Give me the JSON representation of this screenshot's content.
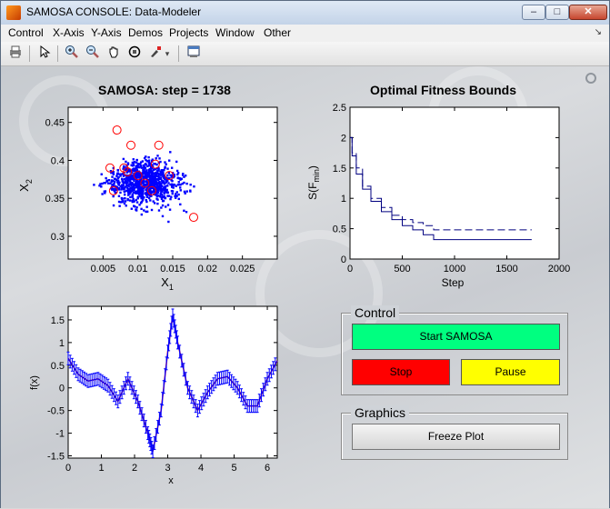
{
  "window": {
    "title": "SAMOSA CONSOLE: Data-Modeler",
    "minimize_label": "–",
    "restore_label": "□",
    "close_label": "✕"
  },
  "menu": {
    "items": [
      "Control",
      "X-Axis",
      "Y-Axis",
      "Demos",
      "Projects",
      "Window",
      "Other"
    ],
    "overflow_arrow": "↘"
  },
  "toolbar": {
    "icons": [
      "print-icon",
      "pointer-icon",
      "zoom-in-icon",
      "zoom-out-icon",
      "pan-hand-icon",
      "rotate-3d-icon",
      "brush-icon",
      "brush-dropdown-icon",
      "plot-tools-icon"
    ]
  },
  "chart_data": [
    {
      "type": "scatter",
      "title": "SAMOSA: step = 1738",
      "xlabel": "X_1",
      "ylabel": "X_2",
      "xlim": [
        0,
        0.03
      ],
      "ylim": [
        0.27,
        0.47
      ],
      "xticks": [
        "0.005",
        "0.01",
        "0.015",
        "0.02",
        "0.025"
      ],
      "yticks": [
        "0.3",
        "0.35",
        "0.4",
        "0.45"
      ],
      "series": [
        {
          "color": "#0000ff",
          "marker": "dot",
          "points_description": "dense cloud centered near (0.011, 0.37), roughly 1000 points"
        },
        {
          "color": "#ff0000",
          "marker": "circle",
          "points": [
            [
              0.007,
              0.44
            ],
            [
              0.009,
              0.42
            ],
            [
              0.006,
              0.39
            ],
            [
              0.008,
              0.39
            ],
            [
              0.01,
              0.38
            ],
            [
              0.011,
              0.37
            ],
            [
              0.012,
              0.36
            ],
            [
              0.0125,
              0.395
            ],
            [
              0.013,
              0.42
            ],
            [
              0.0065,
              0.36
            ],
            [
              0.0145,
              0.38
            ],
            [
              0.018,
              0.325
            ],
            [
              0.0085,
              0.385
            ]
          ]
        }
      ]
    },
    {
      "type": "line",
      "title": "Optimal Fitness Bounds",
      "xlabel": "Step",
      "ylabel": "S(F_min)",
      "xlim": [
        0,
        2000
      ],
      "ylim": [
        0,
        2.5
      ],
      "xticks": [
        "0",
        "500",
        "1000",
        "1500",
        "2000"
      ],
      "yticks": [
        "0",
        "0.5",
        "1",
        "1.5",
        "2",
        "2.5"
      ],
      "series": [
        {
          "style": "solid",
          "color": "#000080",
          "x": [
            0,
            20,
            60,
            120,
            200,
            300,
            400,
            500,
            600,
            700,
            800,
            1000,
            1200,
            1400,
            1738
          ],
          "y": [
            2.0,
            1.7,
            1.4,
            1.15,
            0.95,
            0.78,
            0.65,
            0.55,
            0.48,
            0.4,
            0.32,
            0.32,
            0.32,
            0.32,
            0.32
          ]
        },
        {
          "style": "dashed",
          "color": "#000080",
          "x": [
            0,
            20,
            60,
            120,
            200,
            300,
            400,
            500,
            600,
            700,
            800,
            1000,
            1200,
            1400,
            1738
          ],
          "y": [
            2.0,
            1.75,
            1.5,
            1.2,
            1.0,
            0.85,
            0.72,
            0.65,
            0.6,
            0.55,
            0.48,
            0.48,
            0.48,
            0.48,
            0.48
          ]
        }
      ]
    },
    {
      "type": "line",
      "title": "",
      "xlabel": "x",
      "ylabel": "f(x)",
      "xlim": [
        0,
        6.3
      ],
      "ylim": [
        -1.55,
        1.8
      ],
      "xticks": [
        "0",
        "1",
        "2",
        "3",
        "4",
        "5",
        "6"
      ],
      "yticks": [
        "-1.5",
        "-1",
        "-0.5",
        "0",
        "0.5",
        "1",
        "1.5"
      ],
      "series": [
        {
          "color": "#ff0000",
          "style": "line",
          "x": [
            0,
            0.3,
            0.6,
            0.9,
            1.2,
            1.5,
            1.8,
            2.1,
            2.4,
            2.55,
            2.8,
            3.0,
            3.15,
            3.3,
            3.6,
            3.9,
            4.2,
            4.5,
            4.8,
            5.1,
            5.4,
            5.7,
            6.0,
            6.3
          ],
          "y": [
            0.65,
            0.3,
            0.15,
            0.2,
            0.05,
            -0.3,
            0.2,
            -0.3,
            -1.0,
            -1.4,
            -0.5,
            0.8,
            1.6,
            1.0,
            0.0,
            -0.5,
            -0.1,
            0.2,
            0.25,
            0.0,
            -0.4,
            -0.4,
            0.2,
            0.6
          ]
        },
        {
          "color": "#0000ff",
          "style": "errorbar",
          "x": [
            0,
            0.3,
            0.6,
            0.9,
            1.2,
            1.5,
            1.8,
            2.1,
            2.4,
            2.55,
            2.8,
            3.0,
            3.15,
            3.3,
            3.6,
            3.9,
            4.2,
            4.5,
            4.8,
            5.1,
            5.4,
            5.7,
            6.0,
            6.3
          ],
          "y": [
            0.65,
            0.3,
            0.15,
            0.2,
            0.05,
            -0.3,
            0.2,
            -0.3,
            -1.0,
            -1.4,
            -0.5,
            0.8,
            1.6,
            1.0,
            0.0,
            -0.5,
            -0.1,
            0.2,
            0.25,
            0.0,
            -0.4,
            -0.4,
            0.2,
            0.6
          ]
        }
      ]
    }
  ],
  "control_panel": {
    "title": "Control",
    "start_label": "Start SAMOSA",
    "stop_label": "Stop",
    "pause_label": "Pause",
    "start_color": "#00ff80",
    "stop_color": "#ff0000",
    "pause_color": "#ffff00"
  },
  "graphics_panel": {
    "title": "Graphics",
    "freeze_label": "Freeze Plot"
  }
}
